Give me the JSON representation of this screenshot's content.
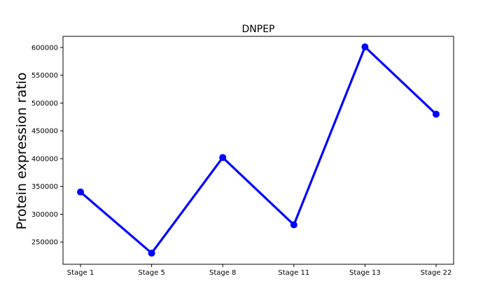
{
  "chart_data": {
    "type": "line",
    "title": "DNPEP",
    "xlabel": "",
    "ylabel": "Protein expression ratio",
    "categories": [
      "Stage 1",
      "Stage 5",
      "Stage 8",
      "Stage 11",
      "Stage 13",
      "Stage 22"
    ],
    "series": [
      {
        "values": [
          340000,
          230000,
          402000,
          281000,
          601000,
          480000
        ],
        "color": "#0000ff",
        "marker": "circle"
      }
    ],
    "yticks": [
      250000,
      300000,
      350000,
      400000,
      450000,
      500000,
      550000,
      600000
    ],
    "ytick_labels": [
      "250000",
      "300000",
      "350000",
      "400000",
      "450000",
      "500000",
      "550000",
      "600000"
    ],
    "ylim": [
      210000,
      620000
    ],
    "grid": false,
    "legend": "none"
  }
}
